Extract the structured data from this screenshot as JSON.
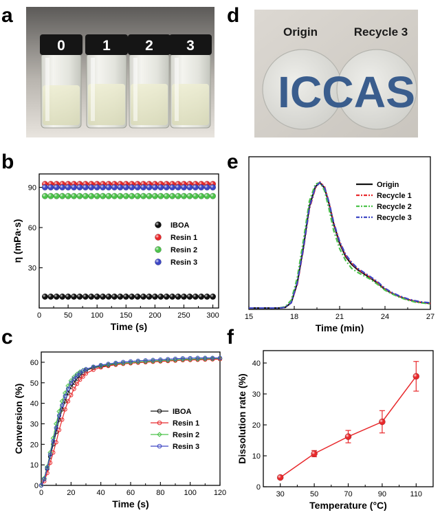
{
  "photos": {
    "a": {
      "letter": "a",
      "vial_labels": [
        "0",
        "1",
        "2",
        "3"
      ]
    },
    "d": {
      "letter": "d",
      "left_label": "Origin",
      "right_label": "Recycle 3",
      "logo_text": "ICCAS"
    }
  },
  "chart_data": [
    {
      "panel": "b",
      "type": "scatter",
      "xlabel": "Time (s)",
      "ylabel": "η (mPa·s)",
      "xlim": [
        0,
        310
      ],
      "ylim": [
        0,
        100
      ],
      "xticks": [
        0,
        50,
        100,
        150,
        200,
        250,
        300
      ],
      "yticks": [
        30,
        60,
        90
      ],
      "x": [
        10,
        20,
        30,
        40,
        50,
        60,
        70,
        80,
        90,
        100,
        110,
        120,
        130,
        140,
        150,
        160,
        170,
        180,
        190,
        200,
        210,
        220,
        230,
        240,
        250,
        260,
        270,
        280,
        290,
        300
      ],
      "series": [
        {
          "name": "IBOA",
          "color": "#111111",
          "value": 8.5
        },
        {
          "name": "Resin 1",
          "color": "#e8282b",
          "value": 92.5
        },
        {
          "name": "Resin 2",
          "color": "#4cc24a",
          "value": 83.5
        },
        {
          "name": "Resin 3",
          "color": "#3d46c4",
          "value": 90.0
        }
      ],
      "legend": "right"
    },
    {
      "panel": "c",
      "type": "line",
      "xlabel": "Time (s)",
      "ylabel": "Conversion (%)",
      "xlim": [
        0,
        120
      ],
      "ylim": [
        0,
        65
      ],
      "xticks": [
        0,
        20,
        40,
        60,
        80,
        100,
        120
      ],
      "yticks": [
        0,
        10,
        20,
        30,
        40,
        50,
        60
      ],
      "x": [
        0,
        2,
        4,
        6,
        8,
        10,
        12,
        14,
        16,
        18,
        20,
        22,
        24,
        26,
        28,
        30,
        35,
        40,
        45,
        50,
        55,
        60,
        65,
        70,
        75,
        80,
        85,
        90,
        95,
        100,
        105,
        110,
        115,
        120
      ],
      "series": [
        {
          "name": "IBOA",
          "color": "#111111",
          "marker": "circle",
          "values": [
            0,
            3,
            8,
            14,
            20,
            26,
            32,
            37,
            41,
            45,
            48,
            50,
            52,
            53.5,
            55,
            56,
            57.3,
            58,
            58.5,
            59,
            59.4,
            59.7,
            60,
            60.2,
            60.4,
            60.6,
            60.8,
            61,
            61.1,
            61.2,
            61.3,
            61.4,
            61.5,
            61.6
          ]
        },
        {
          "name": "Resin 1",
          "color": "#e8282b",
          "marker": "circle",
          "values": [
            0,
            2,
            6,
            11,
            16,
            21,
            27,
            32,
            37,
            41,
            44,
            47,
            49.5,
            51.5,
            53,
            54.5,
            56.3,
            57.5,
            58.2,
            58.8,
            59.2,
            59.5,
            59.8,
            60,
            60.2,
            60.4,
            60.6,
            60.8,
            61,
            61.1,
            61.2,
            61.3,
            61.4,
            61.5
          ]
        },
        {
          "name": "Resin 2",
          "color": "#4cc24a",
          "marker": "diamond",
          "values": [
            0,
            3.5,
            9,
            16,
            23,
            30,
            36,
            41,
            45,
            48.5,
            51,
            52.8,
            54.2,
            55.3,
            56,
            56.6,
            57.6,
            58.3,
            58.8,
            59.3,
            59.6,
            59.9,
            60.2,
            60.4,
            60.6,
            60.8,
            61,
            61.2,
            61.4,
            61.5,
            61.6,
            61.7,
            61.8,
            61.9
          ]
        },
        {
          "name": "Resin 3",
          "color": "#3d46c4",
          "marker": "circle",
          "values": [
            0,
            3,
            8.5,
            15,
            21.5,
            28,
            34,
            39,
            43.5,
            47,
            50,
            52,
            53.5,
            54.8,
            55.8,
            56.6,
            57.8,
            58.6,
            59.2,
            59.7,
            60.1,
            60.4,
            60.7,
            60.9,
            61.1,
            61.3,
            61.5,
            61.7,
            61.9,
            62,
            62.1,
            62.1,
            62.1,
            62.1
          ]
        }
      ],
      "legend": "right"
    },
    {
      "panel": "e",
      "type": "line",
      "xlabel": "Time (min)",
      "xlim": [
        15,
        27
      ],
      "ylim": [
        0,
        100
      ],
      "xticks": [
        15,
        18,
        21,
        24,
        27
      ],
      "x": [
        15,
        16,
        17,
        17.4,
        17.8,
        18.2,
        18.6,
        19.0,
        19.4,
        19.7,
        20.0,
        20.3,
        20.6,
        21.0,
        21.4,
        21.8,
        22.2,
        22.6,
        23,
        23.5,
        24,
        24.5,
        25,
        25.5,
        26,
        26.5,
        27
      ],
      "series": [
        {
          "name": "Origin",
          "color": "#111111",
          "dash": "",
          "values": [
            1,
            1,
            1,
            1.5,
            5,
            20,
            47,
            78,
            93,
            96,
            92,
            80,
            65,
            50,
            40,
            34,
            30,
            27,
            24,
            20,
            15,
            12,
            9.5,
            7.5,
            6,
            5,
            4.5
          ]
        },
        {
          "name": "Recycle 1",
          "color": "#e8282b",
          "dash": "7,3,2,3",
          "values": [
            1,
            1,
            1,
            1.5,
            5,
            19,
            45,
            76,
            92,
            96.5,
            93,
            81,
            66,
            51,
            41,
            35,
            30.5,
            27.5,
            24.5,
            20.5,
            15.5,
            12,
            9.5,
            7.5,
            6,
            5,
            4.5
          ]
        },
        {
          "name": "Recycle 2",
          "color": "#4cc24a",
          "dash": "7,3,2,3",
          "values": [
            1,
            1,
            1,
            2,
            7,
            24,
            52,
            82,
            95,
            96,
            90,
            76,
            60,
            46,
            37,
            31,
            28,
            25.5,
            23,
            19,
            14.5,
            11.5,
            9,
            7,
            5.5,
            4.8,
            4.2
          ]
        },
        {
          "name": "Recycle 3",
          "color": "#3d46c4",
          "dash": "7,3,2,3",
          "values": [
            1,
            1,
            1,
            1.5,
            5,
            20,
            46,
            77,
            93,
            96,
            92.5,
            81,
            66,
            51.5,
            41.5,
            35.5,
            31,
            28,
            25,
            21,
            16,
            12.5,
            10,
            8,
            6.5,
            5.5,
            5
          ]
        }
      ],
      "legend": "top-right"
    },
    {
      "panel": "f",
      "type": "line",
      "xlabel": "Temperature (°C)",
      "ylabel": "Dissolution rate (%)",
      "xlim": [
        20,
        120
      ],
      "ylim": [
        0,
        44
      ],
      "xticks": [
        30,
        50,
        70,
        90,
        110
      ],
      "yticks": [
        0,
        10,
        20,
        30,
        40
      ],
      "x": [
        30,
        50,
        70,
        90,
        110
      ],
      "series": [
        {
          "name": "",
          "color": "#e8282b",
          "values": [
            3,
            10.7,
            16.2,
            21,
            35.7
          ],
          "errors": [
            0.4,
            1.0,
            2.0,
            3.6,
            4.8
          ]
        }
      ],
      "legend": "none"
    }
  ]
}
